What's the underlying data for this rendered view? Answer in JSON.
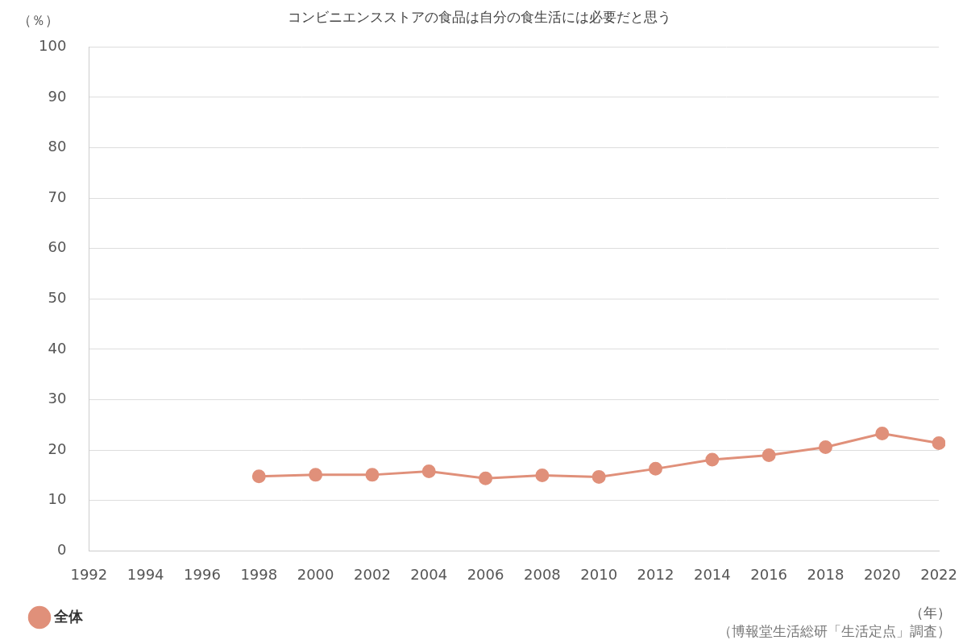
{
  "chart_data": {
    "type": "line",
    "title": "コンビニエンスストアの食品は自分の食生活には必要だと思う",
    "xlabel": "（年）",
    "ylabel": "（％）",
    "annotations": [
      "（博報堂生活総研「生活定点」調査）"
    ],
    "categories": [
      "1992",
      "1994",
      "1996",
      "1998",
      "2000",
      "2002",
      "2004",
      "2006",
      "2008",
      "2010",
      "2012",
      "2014",
      "2016",
      "2018",
      "2020",
      "2022"
    ],
    "series": [
      {
        "name": "全体",
        "color": "#e0907a",
        "marker": "circle",
        "values": [
          null,
          null,
          null,
          14.8,
          15.1,
          15.1,
          15.8,
          14.4,
          15.0,
          14.7,
          16.3,
          18.1,
          19.0,
          20.6,
          23.3,
          21.4
        ]
      }
    ],
    "ylim": [
      0,
      100
    ],
    "yticks": [
      0,
      10,
      20,
      30,
      40,
      50,
      60,
      70,
      80,
      90,
      100
    ],
    "grid": true,
    "legend": "bottom-left"
  }
}
